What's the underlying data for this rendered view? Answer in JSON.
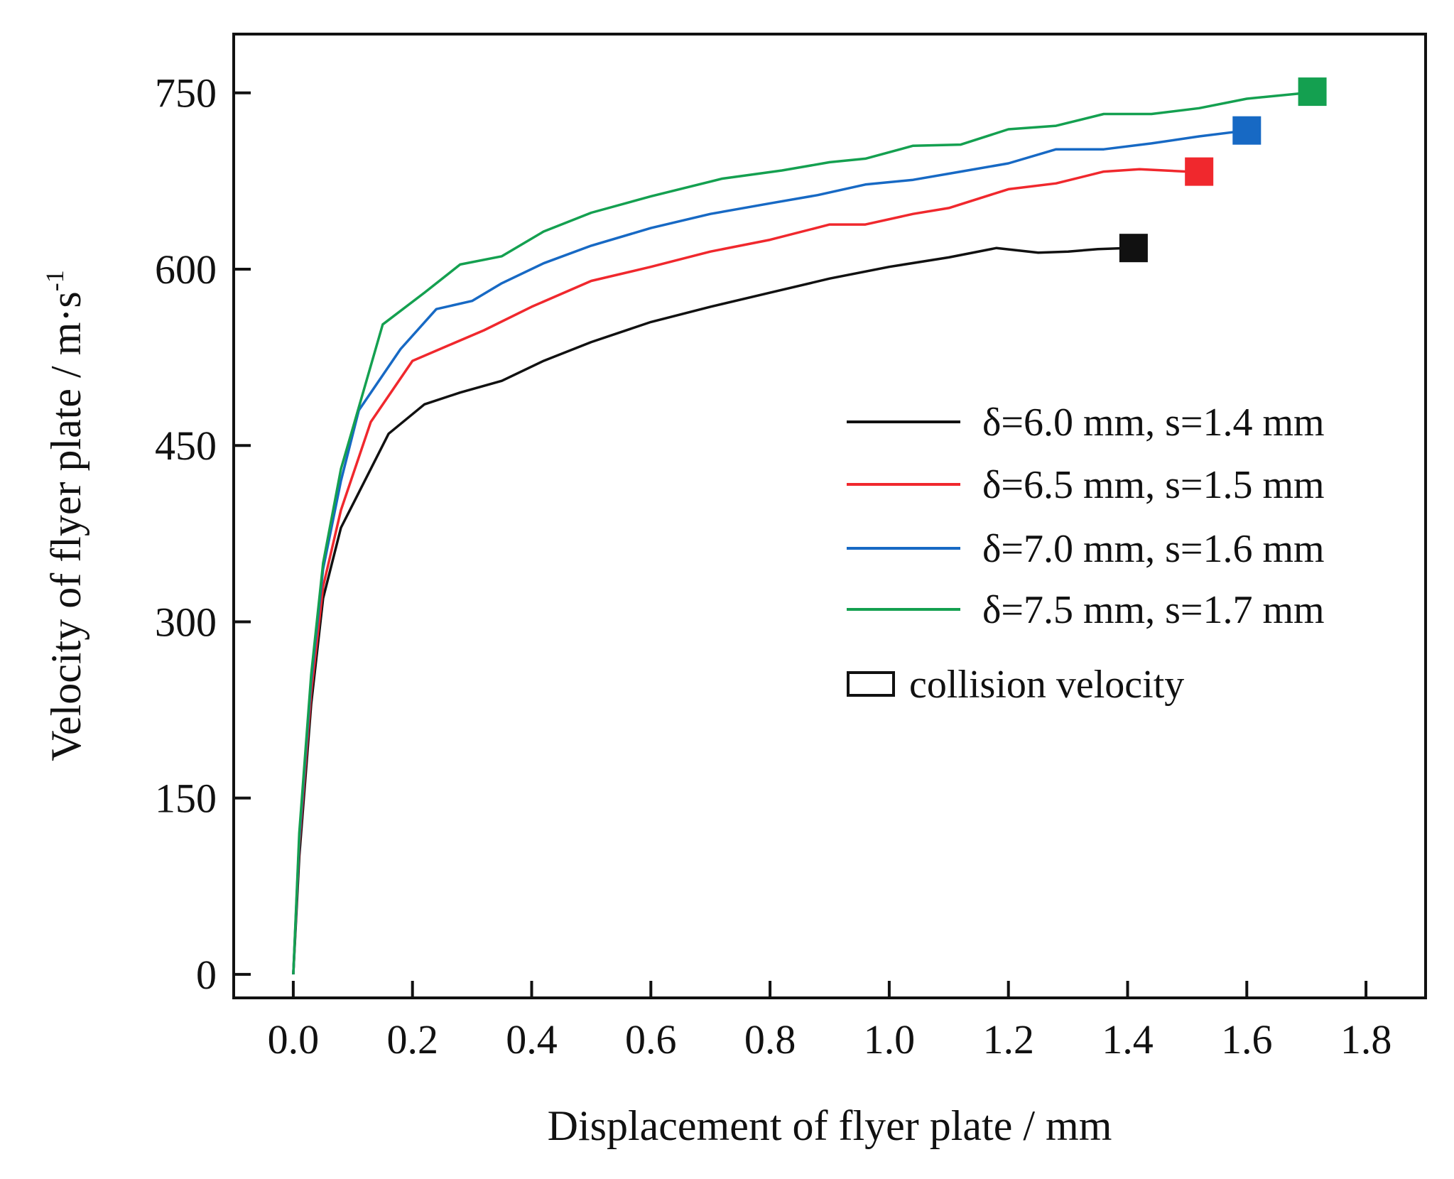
{
  "chart_data": {
    "type": "line",
    "title": "",
    "xlabel": "Displacement of flyer plate / mm",
    "ylabel_main": "Velocity of flyer plate / m·s",
    "ylabel_sup": "-1",
    "xlim": [
      -0.1,
      1.9
    ],
    "ylim": [
      -20,
      800
    ],
    "xticks": [
      0.0,
      0.2,
      0.4,
      0.6,
      0.8,
      1.0,
      1.2,
      1.4,
      1.6,
      1.8
    ],
    "xtick_labels": [
      "0.0",
      "0.2",
      "0.4",
      "0.6",
      "0.8",
      "1.0",
      "1.2",
      "1.4",
      "1.6",
      "1.8"
    ],
    "yticks": [
      0,
      150,
      300,
      450,
      600,
      750
    ],
    "ytick_labels": [
      "0",
      "150",
      "300",
      "450",
      "600",
      "750"
    ],
    "legend_position": "right-middle",
    "series": [
      {
        "name": "δ=6.0 mm, s=1.4 mm",
        "color": "#111111",
        "x": [
          0.0,
          0.01,
          0.03,
          0.05,
          0.08,
          0.11,
          0.16,
          0.22,
          0.28,
          0.35,
          0.42,
          0.5,
          0.6,
          0.7,
          0.8,
          0.9,
          1.0,
          1.1,
          1.18,
          1.25,
          1.3,
          1.35,
          1.4
        ],
        "y": [
          0,
          100,
          230,
          320,
          380,
          410,
          460,
          485,
          495,
          505,
          522,
          538,
          555,
          568,
          580,
          592,
          602,
          610,
          618,
          614,
          615,
          617,
          618
        ],
        "collision_velocity": {
          "x": 1.41,
          "y": 618
        }
      },
      {
        "name": "δ=6.5 mm, s=1.5 mm",
        "color": "#f0282d",
        "x": [
          0.0,
          0.01,
          0.03,
          0.05,
          0.08,
          0.13,
          0.2,
          0.26,
          0.32,
          0.4,
          0.5,
          0.6,
          0.7,
          0.8,
          0.9,
          0.96,
          1.04,
          1.1,
          1.2,
          1.28,
          1.36,
          1.42,
          1.5
        ],
        "y": [
          0,
          110,
          240,
          330,
          395,
          470,
          522,
          535,
          548,
          568,
          590,
          602,
          615,
          625,
          638,
          638,
          647,
          652,
          668,
          673,
          683,
          685,
          683
        ],
        "collision_velocity": {
          "x": 1.52,
          "y": 683
        }
      },
      {
        "name": "δ=7.0 mm, s=1.6 mm",
        "color": "#1769c4",
        "x": [
          0.0,
          0.01,
          0.03,
          0.05,
          0.08,
          0.11,
          0.18,
          0.24,
          0.3,
          0.35,
          0.42,
          0.5,
          0.6,
          0.7,
          0.8,
          0.88,
          0.96,
          1.04,
          1.12,
          1.2,
          1.28,
          1.36,
          1.44,
          1.52,
          1.6
        ],
        "y": [
          0,
          115,
          250,
          345,
          420,
          480,
          532,
          566,
          573,
          588,
          605,
          620,
          635,
          647,
          656,
          663,
          672,
          676,
          683,
          690,
          702,
          702,
          707,
          713,
          718
        ],
        "collision_velocity": {
          "x": 1.6,
          "y": 718
        }
      },
      {
        "name": "δ=7.5 mm, s=1.7 mm",
        "color": "#14a050",
        "x": [
          0.0,
          0.01,
          0.03,
          0.05,
          0.08,
          0.1,
          0.15,
          0.22,
          0.28,
          0.35,
          0.42,
          0.5,
          0.6,
          0.72,
          0.82,
          0.9,
          0.96,
          1.04,
          1.12,
          1.2,
          1.28,
          1.36,
          1.44,
          1.52,
          1.6,
          1.7
        ],
        "y": [
          0,
          120,
          255,
          350,
          430,
          465,
          553,
          580,
          604,
          611,
          632,
          648,
          662,
          677,
          684,
          691,
          694,
          705,
          706,
          719,
          722,
          732,
          732,
          737,
          745,
          750
        ],
        "collision_velocity": {
          "x": 1.71,
          "y": 751
        }
      }
    ],
    "collision_legend_label": "collision velocity"
  }
}
